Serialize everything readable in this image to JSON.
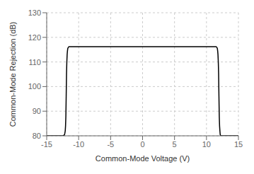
{
  "chart_data": {
    "type": "line",
    "xlabel": "Common-Mode Voltage (V)",
    "ylabel": "Common-Mode Rejection (dB)",
    "x": [
      -15.0,
      -12.5,
      -12.3,
      -12.2,
      -12.1,
      -12.05,
      -12.0,
      -11.95,
      -11.9,
      -11.85,
      -11.8,
      -11.75,
      -11.7,
      -11.6,
      -11.5,
      11.5,
      11.6,
      11.7,
      11.75,
      11.8,
      11.85,
      11.9,
      11.95,
      12.0,
      12.05,
      12.1,
      12.15,
      12.2,
      12.3,
      12.5,
      15.0
    ],
    "values": [
      80.0,
      80.0,
      80.2,
      80.5,
      82.0,
      84.0,
      88.0,
      96.0,
      105.0,
      110.0,
      113.0,
      114.5,
      115.5,
      116.0,
      116.2,
      116.2,
      116.0,
      115.5,
      114.5,
      113.0,
      110.0,
      105.0,
      96.0,
      88.0,
      84.0,
      82.0,
      80.5,
      80.2,
      80.0,
      80.0,
      80.0
    ],
    "color": "#000000",
    "xlim": [
      -15,
      15
    ],
    "ylim": [
      80,
      130
    ],
    "xticks": [
      -15,
      -10,
      -5,
      0,
      5,
      10,
      15
    ],
    "yticks": [
      80,
      90,
      100,
      110,
      120,
      130
    ],
    "grid": true
  }
}
